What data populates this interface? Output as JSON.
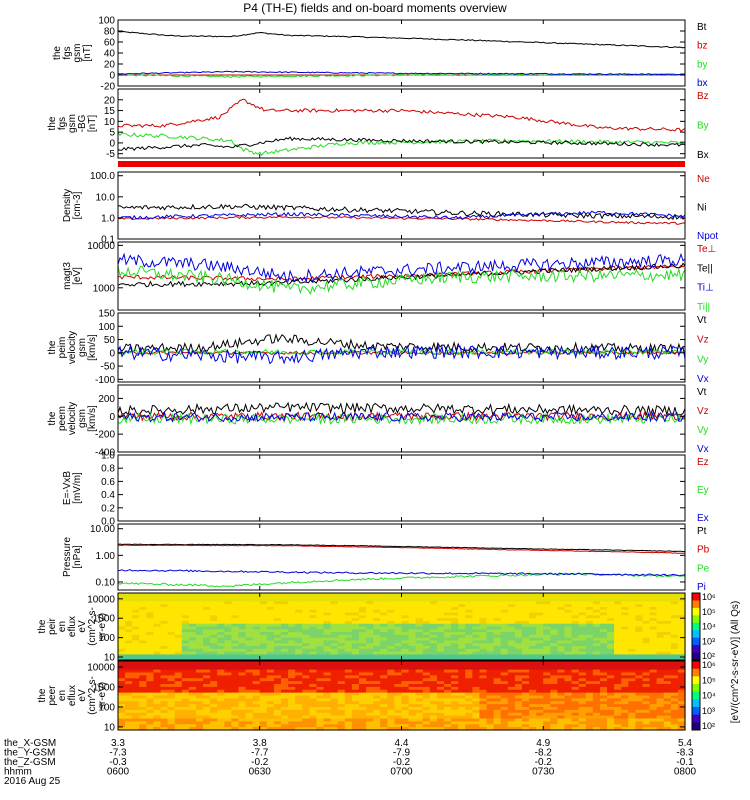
{
  "title": "P4 (TH-E) fields and on-board moments overview",
  "date": "2016 Aug 25",
  "colors": {
    "black": "#000000",
    "red": "#cc0000",
    "green": "#22dd22",
    "blue": "#0000dd",
    "bar_red": "#ee0000"
  },
  "icons": [
    "colorbar"
  ],
  "chart_data": [
    {
      "type": "line",
      "ylabel": [
        "the",
        "fgs",
        "gsm",
        "[nT]"
      ],
      "ylim": [
        -20,
        100
      ],
      "yticks": [
        100,
        80,
        60,
        40,
        20,
        0,
        -20
      ],
      "legend": [
        "Bt",
        "bz",
        "by",
        "bx"
      ],
      "series": [
        {
          "name": "Bt",
          "color": "black",
          "x": [
            0,
            0.1,
            0.2,
            0.25,
            0.3,
            0.4,
            0.6,
            0.8,
            1.0
          ],
          "y": [
            79,
            71,
            70,
            77,
            72,
            70,
            64,
            57,
            50
          ],
          "noise": 1
        },
        {
          "name": "bz",
          "color": "red",
          "x": [
            0,
            1
          ],
          "y": [
            0,
            0
          ],
          "noise": 0
        },
        {
          "name": "by",
          "color": "green",
          "x": [
            0,
            0.2,
            0.3,
            0.5,
            1.0
          ],
          "y": [
            0,
            -3,
            -2,
            0,
            1
          ],
          "noise": 1.5
        },
        {
          "name": "bx",
          "color": "blue",
          "x": [
            0,
            0.2,
            0.3,
            0.5,
            0.8,
            1.0
          ],
          "y": [
            2,
            6,
            5,
            3,
            2,
            1
          ],
          "noise": 1
        }
      ]
    },
    {
      "type": "line",
      "ylabel": [
        "the",
        "fgs",
        "gsm",
        "-BG",
        "[nT]"
      ],
      "ylim": [
        -7,
        25
      ],
      "yticks": [
        20,
        15,
        10,
        5,
        0,
        -5
      ],
      "legend": [
        "Bz",
        "By",
        "Bx"
      ],
      "series": [
        {
          "name": "Bz",
          "color": "red",
          "x": [
            0,
            0.08,
            0.18,
            0.22,
            0.26,
            0.35,
            0.5,
            0.7,
            0.85,
            1.0
          ],
          "y": [
            8,
            8,
            12,
            20,
            15,
            15,
            15,
            12,
            7,
            6
          ],
          "noise": 0.8
        },
        {
          "name": "By",
          "color": "green",
          "x": [
            0,
            0.1,
            0.2,
            0.22,
            0.25,
            0.4,
            0.7,
            1.0
          ],
          "y": [
            4,
            3,
            1,
            -3,
            -5,
            0,
            1,
            0
          ],
          "noise": 0.9
        },
        {
          "name": "Bx",
          "color": "black",
          "x": [
            0,
            0.15,
            0.2,
            0.3,
            0.5,
            0.8,
            1.0
          ],
          "y": [
            -3,
            -1,
            -2,
            2,
            1,
            0,
            -1
          ],
          "noise": 0.8
        }
      ]
    },
    {
      "type": "line",
      "ylabel": [
        "Density",
        "[cm-3]"
      ],
      "yscale": "log",
      "ylim": [
        0.1,
        150
      ],
      "yticks": [
        100.0,
        10.0,
        1.0,
        0.1
      ],
      "ytick_labels": [
        "100.0",
        "10.0",
        "1.0",
        "0.1"
      ],
      "legend": [
        "Ne",
        "Ni",
        "Npot"
      ],
      "series": [
        {
          "name": "Ne",
          "color": "red",
          "x": [
            0,
            0.3,
            0.6,
            0.9,
            1.0
          ],
          "y": [
            0.9,
            1.1,
            0.9,
            0.6,
            0.55
          ],
          "noise": 0.05
        },
        {
          "name": "Ni",
          "color": "black",
          "x": [
            0,
            0.2,
            0.4,
            0.6,
            0.8,
            1.0
          ],
          "y": [
            3,
            3.5,
            2.5,
            1.7,
            1.3,
            1.1
          ],
          "noise": 0.12
        },
        {
          "name": "Npot",
          "color": "blue",
          "x": [
            0,
            0.3,
            0.6,
            0.85,
            1.0
          ],
          "y": [
            1.0,
            1.5,
            1.0,
            1.8,
            1.2
          ],
          "noise": 0.08
        }
      ]
    },
    {
      "type": "line",
      "ylabel": [
        "magt3",
        "[eV]"
      ],
      "yscale": "log",
      "ylim": [
        300,
        12000
      ],
      "yticks": [
        10000,
        1000
      ],
      "ytick_labels": [
        "10000",
        "1000"
      ],
      "legend": [
        "Te⊥",
        "Te||",
        "Ti⊥",
        "Ti||"
      ],
      "series": [
        {
          "name": "Te⊥",
          "color": "red",
          "x": [
            0,
            0.3,
            0.6,
            1.0
          ],
          "y": [
            1800,
            1600,
            2100,
            3200
          ],
          "noise": 0.05
        },
        {
          "name": "Te||",
          "color": "black",
          "x": [
            0,
            0.3,
            0.6,
            1.0
          ],
          "y": [
            1200,
            1300,
            2000,
            3300
          ],
          "noise": 0.06
        },
        {
          "name": "Ti⊥",
          "color": "blue",
          "x": [
            0,
            0.15,
            0.3,
            0.6,
            1.0
          ],
          "y": [
            4500,
            3500,
            1800,
            3000,
            4500
          ],
          "noise": 0.15
        },
        {
          "name": "Ti||",
          "color": "green",
          "x": [
            0,
            0.2,
            0.3,
            0.6,
            1.0
          ],
          "y": [
            2500,
            1500,
            900,
            1800,
            2000
          ],
          "noise": 0.15
        }
      ]
    },
    {
      "type": "line",
      "ylabel": [
        "the",
        "peim",
        "velocity",
        "gsm",
        "[km/s]"
      ],
      "ylim": [
        -110,
        150
      ],
      "yticks": [
        150,
        100,
        50,
        0,
        -50,
        -100
      ],
      "legend": [
        "Vt",
        "Vz",
        "Vy",
        "Vx"
      ],
      "series": [
        {
          "name": "Vt",
          "color": "black",
          "x": [
            0,
            0.15,
            0.28,
            0.45,
            0.7,
            1.0
          ],
          "y": [
            15,
            20,
            55,
            25,
            20,
            15
          ],
          "noise": 18
        },
        {
          "name": "Vz",
          "color": "red",
          "x": [
            0,
            1
          ],
          "y": [
            0,
            0
          ],
          "noise": 6
        },
        {
          "name": "Vy",
          "color": "green",
          "x": [
            0,
            1
          ],
          "y": [
            3,
            3
          ],
          "noise": 10
        },
        {
          "name": "Vx",
          "color": "blue",
          "x": [
            0,
            0.15,
            0.28,
            0.45,
            1.0
          ],
          "y": [
            0,
            -10,
            -20,
            5,
            0
          ],
          "noise": 25
        }
      ]
    },
    {
      "type": "line",
      "ylabel": [
        "the",
        "peem",
        "velocity",
        "gsm",
        "[km/s]"
      ],
      "ylim": [
        -400,
        350
      ],
      "yticks": [
        200,
        0,
        -200,
        -400
      ],
      "legend": [
        "Vt",
        "Vz",
        "Vy",
        "Vx"
      ],
      "series": [
        {
          "name": "Vt",
          "color": "black",
          "x": [
            0,
            0.3,
            1.0
          ],
          "y": [
            60,
            100,
            60
          ],
          "noise": 55
        },
        {
          "name": "Vz",
          "color": "red",
          "x": [
            0,
            1
          ],
          "y": [
            0,
            0
          ],
          "noise": 45
        },
        {
          "name": "Vy",
          "color": "green",
          "x": [
            0,
            1
          ],
          "y": [
            -30,
            -30
          ],
          "noise": 55
        },
        {
          "name": "Vx",
          "color": "blue",
          "x": [
            0,
            1
          ],
          "y": [
            -10,
            -10
          ],
          "noise": 50
        }
      ]
    },
    {
      "type": "line",
      "ylabel": [
        "E=-VxB",
        "[mV/m]"
      ],
      "ylim": [
        0,
        1.0
      ],
      "yticks": [
        1.0,
        0.8,
        0.6,
        0.4,
        0.2,
        0.0
      ],
      "ytick_labels": [
        "1.0",
        "0.8",
        "0.6",
        "0.4",
        "0.2",
        "0.0"
      ],
      "legend": [
        "Ez",
        "Ey",
        "Ex"
      ],
      "series": []
    },
    {
      "type": "line",
      "ylabel": [
        "Pressure",
        "[nPa]"
      ],
      "yscale": "log",
      "ylim": [
        0.05,
        15
      ],
      "yticks": [
        10.0,
        1.0,
        0.1
      ],
      "ytick_labels": [
        "10.00",
        "1.00",
        "0.10"
      ],
      "legend": [
        "Pt",
        "Pb",
        "Pe",
        "Pi"
      ],
      "series": [
        {
          "name": "Pt",
          "color": "black",
          "x": [
            0,
            0.3,
            0.7,
            1.0
          ],
          "y": [
            2.6,
            2.5,
            1.8,
            1.4
          ],
          "noise": 0.01
        },
        {
          "name": "Pb",
          "color": "red",
          "x": [
            0,
            0.3,
            0.7,
            1.0
          ],
          "y": [
            2.4,
            2.3,
            1.6,
            1.2
          ],
          "noise": 0.01
        },
        {
          "name": "Pe",
          "color": "green",
          "x": [
            0,
            0.2,
            0.4,
            0.8,
            1.0
          ],
          "y": [
            0.09,
            0.07,
            0.12,
            0.2,
            0.16
          ],
          "noise": 0.04
        },
        {
          "name": "Pi",
          "color": "blue",
          "x": [
            0,
            0.4,
            0.8,
            1.0
          ],
          "y": [
            0.28,
            0.22,
            0.2,
            0.18
          ],
          "noise": 0.03
        }
      ]
    },
    {
      "type": "heatmap",
      "ylabel": [
        "the",
        "peir",
        "en",
        "eflux",
        "eV",
        "(cm^2-s-",
        "sr-eV)"
      ],
      "yscale": "log",
      "ylim": [
        7,
        20000
      ],
      "yticks": [
        10000,
        1000,
        100,
        10
      ],
      "ytick_labels": [
        "10000",
        "1000",
        "100",
        "10"
      ],
      "zlim": [
        100,
        1000000
      ],
      "zlabel": "[eV/(cm^2-s-sr-eV)] (All Qs)"
    },
    {
      "type": "heatmap",
      "ylabel": [
        "the",
        "peer",
        "en",
        "eflux",
        "eV",
        "(cm^2-s-",
        "sr-eV)"
      ],
      "yscale": "log",
      "ylim": [
        7,
        20000
      ],
      "yticks": [
        10000,
        1000,
        100,
        10
      ],
      "ytick_labels": [
        "10000",
        "1000",
        "100",
        "10"
      ],
      "zlim": [
        100,
        1000000
      ],
      "zlabel": "[eV/(cm^2-s-sr-eV)] (All Qs)"
    }
  ],
  "colorbar_labels": [
    "10⁶",
    "10⁵",
    "10⁴",
    "10³",
    "10²"
  ],
  "x_axis": {
    "row_labels": [
      "the_X-GSM",
      "the_Y-GSM",
      "the_Z-GSM",
      "hhmm"
    ],
    "ticks": [
      {
        "x": 0.0,
        "values": [
          "3.3",
          "-7.3",
          "-0.3",
          "0600"
        ]
      },
      {
        "x": 0.25,
        "values": [
          "3.8",
          "-7.7",
          "-0.2",
          "0630"
        ]
      },
      {
        "x": 0.5,
        "values": [
          "4.4",
          "-7.9",
          "-0.2",
          "0700"
        ]
      },
      {
        "x": 0.75,
        "values": [
          "4.9",
          "-8.2",
          "-0.2",
          "0730"
        ]
      },
      {
        "x": 1.0,
        "values": [
          "5.4",
          "-8.3",
          "-0.1",
          "0800"
        ]
      }
    ]
  }
}
